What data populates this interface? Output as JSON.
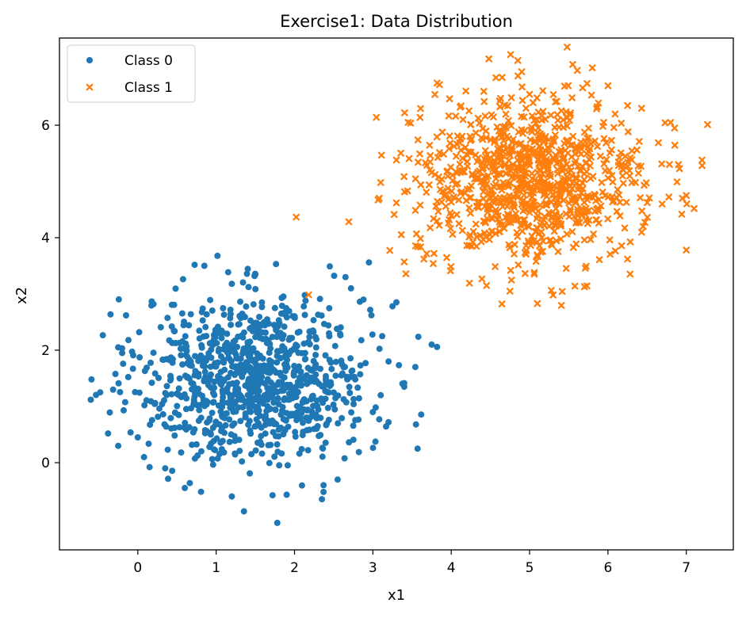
{
  "chart_data": {
    "type": "scatter",
    "title": "Exercise1: Data Distribution",
    "xlabel": "x1",
    "ylabel": "x2",
    "xlim": [
      -1.0,
      7.6
    ],
    "ylim": [
      -1.55,
      7.55
    ],
    "xticks": [
      0,
      1,
      2,
      3,
      4,
      5,
      6,
      7
    ],
    "yticks": [
      0,
      2,
      4,
      6
    ],
    "grid": false,
    "legend_position": "top-left",
    "series": [
      {
        "name": "Class 0",
        "marker": "circle",
        "color": "#1f77b4",
        "center": [
          1.5,
          1.5
        ],
        "spread": 0.72,
        "count": 1000,
        "points": [
          [
            -0.6,
            1.12
          ],
          [
            -0.48,
            1.25
          ],
          [
            -0.38,
            0.52
          ],
          [
            -0.25,
            0.3
          ],
          [
            -0.18,
            0.93
          ],
          [
            -0.15,
            2.62
          ],
          [
            -0.12,
            2.18
          ],
          [
            -0.2,
            1.95
          ],
          [
            0.2,
            2.82
          ],
          [
            0.08,
            0.1
          ],
          [
            3.75,
            2.1
          ],
          [
            3.55,
            0.68
          ],
          [
            3.57,
            0.25
          ],
          [
            3.4,
            1.35
          ],
          [
            3.3,
            2.85
          ],
          [
            3.25,
            2.78
          ],
          [
            2.95,
            3.56
          ],
          [
            2.45,
            3.49
          ],
          [
            2.65,
            3.3
          ],
          [
            2.72,
            3.1
          ],
          [
            1.78,
            -1.07
          ],
          [
            1.72,
            -0.58
          ],
          [
            1.9,
            -0.57
          ],
          [
            1.2,
            -0.6
          ],
          [
            0.6,
            -0.45
          ],
          [
            2.35,
            -0.65
          ],
          [
            2.37,
            -0.52
          ],
          [
            2.37,
            -0.4
          ],
          [
            2.55,
            -0.3
          ],
          [
            0.85,
            3.5
          ],
          [
            1.5,
            3.35
          ],
          [
            1.2,
            3.18
          ],
          [
            2.88,
            2.9
          ],
          [
            3.2,
            1.8
          ],
          [
            3.1,
            1.2
          ],
          [
            3.0,
            0.9
          ],
          [
            3.2,
            0.72
          ],
          [
            0.15,
            -0.08
          ],
          [
            0.35,
            -0.1
          ],
          [
            0.0,
            0.45
          ]
        ]
      },
      {
        "name": "Class 1",
        "marker": "x",
        "color": "#ff7f0e",
        "center": [
          5.0,
          5.0
        ],
        "spread": 0.72,
        "count": 1000,
        "points": [
          [
            4.48,
            7.18
          ],
          [
            4.85,
            7.15
          ],
          [
            4.9,
            6.95
          ],
          [
            5.8,
            7.02
          ],
          [
            4.65,
            6.85
          ],
          [
            3.82,
            6.75
          ],
          [
            3.85,
            6.72
          ],
          [
            7.2,
            5.38
          ],
          [
            7.0,
            4.75
          ],
          [
            7.0,
            3.78
          ],
          [
            6.95,
            4.7
          ],
          [
            6.9,
            5.3
          ],
          [
            3.1,
            4.98
          ],
          [
            3.08,
            4.7
          ],
          [
            3.3,
            5.38
          ],
          [
            3.4,
            3.57
          ],
          [
            4.45,
            3.15
          ],
          [
            5.1,
            2.83
          ],
          [
            5.7,
            3.13
          ],
          [
            5.3,
            2.98
          ],
          [
            4.75,
            3.05
          ],
          [
            6.8,
            6.05
          ],
          [
            6.85,
            5.95
          ],
          [
            6.25,
            3.62
          ],
          [
            6.45,
            4.2
          ],
          [
            3.78,
            3.72
          ],
          [
            3.65,
            3.62
          ],
          [
            3.3,
            4.62
          ],
          [
            3.45,
            6.05
          ],
          [
            6.25,
            6.35
          ],
          [
            6.0,
            6.7
          ],
          [
            5.55,
            7.08
          ],
          [
            4.42,
            6.42
          ],
          [
            4.15,
            6.1
          ],
          [
            5.0,
            6.55
          ]
        ]
      }
    ]
  }
}
